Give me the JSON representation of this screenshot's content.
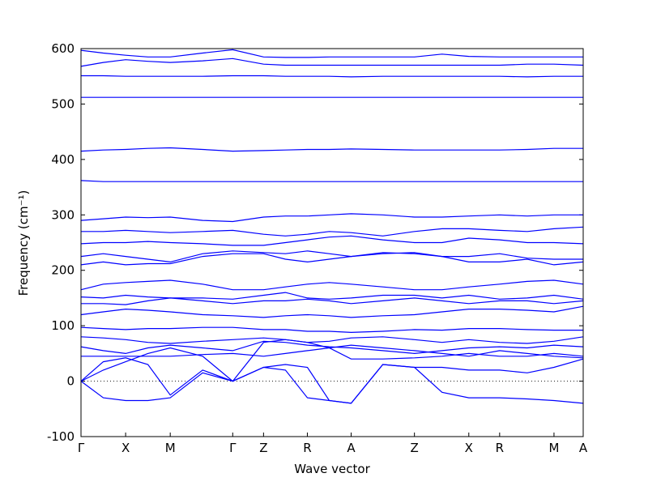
{
  "chart_data": {
    "type": "line",
    "xlabel": "Wave vector",
    "ylabel": "Frequency (cm⁻¹)",
    "color": "#0000ff",
    "zero_line": true,
    "grid": false,
    "xlim": [
      0,
      6.19
    ],
    "ylim": [
      -100,
      600
    ],
    "yticks": [
      -100,
      0,
      100,
      200,
      300,
      400,
      500,
      600
    ],
    "xticks": [
      {
        "value": 0,
        "label": "Γ"
      },
      {
        "value": 0.55,
        "label": "X"
      },
      {
        "value": 1.1,
        "label": "M"
      },
      {
        "value": 1.87,
        "label": "Γ"
      },
      {
        "value": 2.25,
        "label": "Z"
      },
      {
        "value": 2.79,
        "label": "R"
      },
      {
        "value": 3.33,
        "label": "A"
      },
      {
        "value": 4.11,
        "label": "Z"
      },
      {
        "value": 4.78,
        "label": "X"
      },
      {
        "value": 5.16,
        "label": "R"
      },
      {
        "value": 5.83,
        "label": "M"
      },
      {
        "value": 6.19,
        "label": "A"
      }
    ],
    "x": [
      0,
      0.275,
      0.55,
      0.825,
      1.1,
      1.5,
      1.87,
      2.25,
      2.52,
      2.79,
      3.06,
      3.33,
      3.72,
      4.11,
      4.45,
      4.78,
      5.16,
      5.5,
      5.83,
      6.19
    ],
    "series": [
      {
        "values": [
          0,
          -30,
          -35,
          -35,
          -30,
          15,
          0,
          25,
          20,
          -30,
          -35,
          -40,
          30,
          25,
          -20,
          -30,
          -30,
          -32,
          -35,
          -40
        ]
      },
      {
        "values": [
          0,
          35,
          42,
          30,
          -25,
          20,
          0,
          25,
          30,
          25,
          -35,
          -40,
          30,
          25,
          25,
          20,
          20,
          15,
          25,
          40
        ]
      },
      {
        "values": [
          0,
          20,
          35,
          50,
          60,
          45,
          0,
          70,
          75,
          70,
          60,
          40,
          40,
          42,
          45,
          50,
          45,
          45,
          50,
          45
        ]
      },
      {
        "values": [
          45,
          45,
          45,
          45,
          45,
          48,
          50,
          45,
          50,
          55,
          60,
          65,
          60,
          55,
          50,
          45,
          55,
          50,
          45,
          42
        ]
      },
      {
        "values": [
          62,
          55,
          50,
          60,
          65,
          60,
          55,
          72,
          70,
          65,
          62,
          60,
          55,
          50,
          55,
          60,
          62,
          60,
          65,
          62
        ]
      },
      {
        "values": [
          80,
          78,
          75,
          70,
          68,
          72,
          75,
          78,
          75,
          70,
          72,
          78,
          80,
          75,
          70,
          75,
          70,
          68,
          72,
          80
        ]
      },
      {
        "values": [
          97,
          95,
          93,
          95,
          95,
          97,
          97,
          93,
          93,
          90,
          90,
          88,
          90,
          93,
          92,
          95,
          95,
          93,
          92,
          92
        ]
      },
      {
        "values": [
          120,
          125,
          130,
          128,
          125,
          120,
          118,
          115,
          118,
          120,
          118,
          115,
          118,
          120,
          125,
          130,
          130,
          128,
          125,
          135
        ]
      },
      {
        "values": [
          140,
          140,
          138,
          145,
          150,
          145,
          140,
          145,
          145,
          148,
          145,
          140,
          145,
          150,
          145,
          140,
          145,
          145,
          140,
          145
        ]
      },
      {
        "values": [
          152,
          150,
          155,
          152,
          150,
          150,
          148,
          155,
          160,
          150,
          148,
          150,
          155,
          155,
          150,
          155,
          148,
          150,
          155,
          148
        ]
      },
      {
        "values": [
          165,
          175,
          178,
          180,
          182,
          175,
          165,
          165,
          170,
          175,
          178,
          175,
          170,
          165,
          165,
          170,
          175,
          180,
          182,
          175
        ]
      },
      {
        "values": [
          210,
          215,
          210,
          212,
          212,
          225,
          230,
          230,
          220,
          215,
          220,
          225,
          230,
          232,
          225,
          215,
          215,
          220,
          210,
          215
        ]
      },
      {
        "values": [
          225,
          230,
          225,
          220,
          215,
          230,
          235,
          232,
          230,
          235,
          230,
          225,
          232,
          230,
          225,
          225,
          230,
          222,
          220,
          220
        ]
      },
      {
        "values": [
          248,
          250,
          250,
          252,
          250,
          248,
          245,
          245,
          250,
          255,
          260,
          262,
          255,
          250,
          250,
          258,
          255,
          250,
          250,
          248
        ]
      },
      {
        "values": [
          270,
          270,
          272,
          270,
          268,
          270,
          272,
          265,
          262,
          265,
          270,
          268,
          262,
          270,
          275,
          275,
          272,
          270,
          275,
          278
        ]
      },
      {
        "values": [
          290,
          293,
          296,
          295,
          296,
          290,
          288,
          296,
          298,
          298,
          300,
          302,
          300,
          296,
          296,
          298,
          300,
          298,
          300,
          300
        ]
      },
      {
        "values": [
          362,
          360,
          360,
          360,
          360,
          360,
          360,
          360,
          360,
          360,
          360,
          360,
          360,
          360,
          360,
          360,
          360,
          360,
          360,
          360
        ]
      },
      {
        "values": [
          415,
          417,
          418,
          420,
          421,
          418,
          415,
          416,
          417,
          418,
          418,
          419,
          418,
          417,
          417,
          417,
          417,
          418,
          420,
          420
        ]
      },
      {
        "values": [
          512,
          512,
          512,
          512,
          512,
          512,
          512,
          512,
          512,
          512,
          512,
          512,
          512,
          512,
          512,
          512,
          512,
          512,
          512,
          512
        ]
      },
      {
        "values": [
          551,
          551,
          550,
          550,
          550,
          550,
          551,
          551,
          550,
          550,
          550,
          549,
          550,
          550,
          550,
          550,
          550,
          549,
          550,
          550
        ]
      },
      {
        "values": [
          568,
          575,
          580,
          577,
          575,
          578,
          582,
          572,
          570,
          570,
          570,
          570,
          570,
          570,
          570,
          570,
          570,
          572,
          572,
          570
        ]
      },
      {
        "values": [
          597,
          592,
          588,
          585,
          585,
          592,
          598,
          585,
          584,
          584,
          585,
          585,
          585,
          585,
          590,
          586,
          585,
          585,
          585,
          585
        ]
      }
    ]
  }
}
